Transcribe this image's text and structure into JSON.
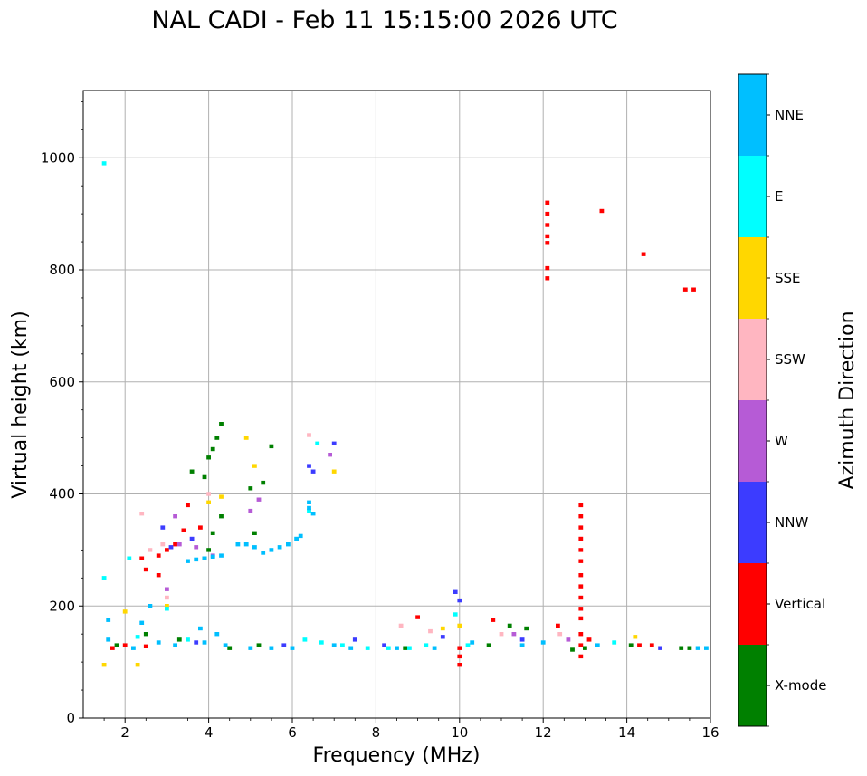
{
  "chart_data": {
    "type": "scatter",
    "title": "NAL CADI - Feb 11 15:15:00 2026 UTC",
    "xlabel": "Frequency (MHz)",
    "ylabel": "Virtual height (km)",
    "xlim": [
      1,
      16
    ],
    "ylim": [
      0,
      1120
    ],
    "xticks": [
      2,
      4,
      6,
      8,
      10,
      12,
      14,
      16
    ],
    "yticks": [
      0,
      200,
      400,
      600,
      800,
      1000
    ],
    "grid": true,
    "colorbar": {
      "label": "Azimuth Direction",
      "categories": [
        {
          "name": "X-mode",
          "color": "#008000"
        },
        {
          "name": "Vertical",
          "color": "#ff0000"
        },
        {
          "name": "NNW",
          "color": "#3c3cff"
        },
        {
          "name": "W",
          "color": "#b65bd6"
        },
        {
          "name": "SSW",
          "color": "#ffb6c1"
        },
        {
          "name": "SSE",
          "color": "#ffd700"
        },
        {
          "name": "E",
          "color": "#00ffff"
        },
        {
          "name": "NNE",
          "color": "#00bfff"
        }
      ]
    },
    "series": [
      {
        "name": "Vertical",
        "color": "#ff0000",
        "points": [
          [
            12.1,
            920
          ],
          [
            12.1,
            900
          ],
          [
            12.1,
            880
          ],
          [
            12.1,
            860
          ],
          [
            12.1,
            848
          ],
          [
            12.1,
            803
          ],
          [
            12.1,
            785
          ],
          [
            13.4,
            905
          ],
          [
            14.4,
            828
          ],
          [
            15.4,
            765
          ],
          [
            15.6,
            765
          ],
          [
            12.9,
            380
          ],
          [
            12.9,
            360
          ],
          [
            12.9,
            340
          ],
          [
            12.9,
            320
          ],
          [
            12.9,
            300
          ],
          [
            12.9,
            280
          ],
          [
            12.9,
            255
          ],
          [
            12.9,
            235
          ],
          [
            12.9,
            215
          ],
          [
            12.9,
            195
          ],
          [
            12.9,
            178
          ],
          [
            12.9,
            150
          ],
          [
            12.9,
            130
          ],
          [
            12.9,
            110
          ],
          [
            10.0,
            95
          ],
          [
            10.0,
            110
          ],
          [
            10.0,
            125
          ],
          [
            12.35,
            165
          ],
          [
            13.1,
            140
          ],
          [
            14.3,
            130
          ],
          [
            14.6,
            130
          ],
          [
            2.4,
            285
          ],
          [
            2.5,
            265
          ],
          [
            2.8,
            290
          ],
          [
            3.0,
            300
          ],
          [
            3.2,
            310
          ],
          [
            3.4,
            335
          ],
          [
            3.5,
            380
          ],
          [
            3.8,
            340
          ],
          [
            2.8,
            255
          ],
          [
            1.7,
            125
          ],
          [
            2.0,
            130
          ],
          [
            2.5,
            128
          ],
          [
            9.0,
            180
          ],
          [
            10.8,
            175
          ]
        ]
      },
      {
        "name": "X-mode",
        "color": "#008000",
        "points": [
          [
            4.3,
            525
          ],
          [
            4.1,
            480
          ],
          [
            4.2,
            500
          ],
          [
            4.0,
            465
          ],
          [
            3.9,
            430
          ],
          [
            3.6,
            440
          ],
          [
            4.1,
            330
          ],
          [
            4.0,
            300
          ],
          [
            3.9,
            285
          ],
          [
            5.1,
            330
          ],
          [
            5.5,
            485
          ],
          [
            5.3,
            420
          ],
          [
            5.0,
            410
          ],
          [
            4.3,
            360
          ],
          [
            15.3,
            125
          ],
          [
            15.5,
            125
          ],
          [
            11.2,
            165
          ],
          [
            11.6,
            160
          ],
          [
            12.7,
            122
          ],
          [
            14.1,
            130
          ],
          [
            1.8,
            130
          ],
          [
            2.5,
            150
          ],
          [
            3.3,
            140
          ],
          [
            4.5,
            125
          ],
          [
            5.2,
            130
          ],
          [
            8.7,
            125
          ],
          [
            10.7,
            130
          ],
          [
            13.0,
            125
          ]
        ]
      },
      {
        "name": "NNW",
        "color": "#3c3cff",
        "points": [
          [
            6.4,
            450
          ],
          [
            7.0,
            490
          ],
          [
            3.6,
            320
          ],
          [
            3.1,
            305
          ],
          [
            2.9,
            340
          ],
          [
            6.5,
            440
          ],
          [
            9.6,
            145
          ],
          [
            9.9,
            225
          ],
          [
            10.0,
            210
          ],
          [
            14.8,
            125
          ],
          [
            11.5,
            140
          ],
          [
            5.8,
            130
          ],
          [
            7.5,
            140
          ],
          [
            8.2,
            130
          ],
          [
            3.7,
            135
          ]
        ]
      },
      {
        "name": "W",
        "color": "#b65bd6",
        "points": [
          [
            5.0,
            370
          ],
          [
            5.2,
            390
          ],
          [
            6.9,
            470
          ],
          [
            3.3,
            310
          ],
          [
            3.7,
            305
          ],
          [
            3.2,
            360
          ],
          [
            12.6,
            140
          ],
          [
            11.3,
            150
          ],
          [
            4.1,
            290
          ],
          [
            3.0,
            230
          ]
        ]
      },
      {
        "name": "SSW",
        "color": "#ffb6c1",
        "points": [
          [
            2.4,
            365
          ],
          [
            6.4,
            505
          ],
          [
            2.6,
            300
          ],
          [
            2.9,
            310
          ],
          [
            3.0,
            215
          ],
          [
            8.6,
            165
          ],
          [
            9.3,
            155
          ],
          [
            11.0,
            150
          ],
          [
            12.4,
            150
          ],
          [
            4.0,
            400
          ]
        ]
      },
      {
        "name": "SSE",
        "color": "#ffd700",
        "points": [
          [
            4.0,
            385
          ],
          [
            4.3,
            395
          ],
          [
            4.9,
            500
          ],
          [
            7.0,
            440
          ],
          [
            5.1,
            450
          ],
          [
            1.5,
            95
          ],
          [
            2.3,
            95
          ],
          [
            2.0,
            190
          ],
          [
            3.0,
            200
          ],
          [
            10.0,
            165
          ],
          [
            14.2,
            145
          ],
          [
            9.6,
            160
          ]
        ]
      },
      {
        "name": "E",
        "color": "#00ffff",
        "points": [
          [
            1.5,
            990
          ],
          [
            1.5,
            250
          ],
          [
            6.6,
            490
          ],
          [
            2.1,
            285
          ],
          [
            3.0,
            195
          ],
          [
            6.4,
            370
          ],
          [
            6.3,
            140
          ],
          [
            6.7,
            135
          ],
          [
            7.2,
            130
          ],
          [
            7.8,
            125
          ],
          [
            8.3,
            125
          ],
          [
            8.8,
            125
          ],
          [
            9.2,
            130
          ],
          [
            10.2,
            130
          ],
          [
            13.7,
            135
          ],
          [
            3.5,
            140
          ],
          [
            2.3,
            145
          ],
          [
            9.9,
            185
          ]
        ]
      },
      {
        "name": "NNE",
        "color": "#00bfff",
        "points": [
          [
            6.4,
            385
          ],
          [
            6.4,
            375
          ],
          [
            6.5,
            365
          ],
          [
            6.2,
            325
          ],
          [
            6.1,
            320
          ],
          [
            5.9,
            310
          ],
          [
            5.7,
            305
          ],
          [
            5.5,
            300
          ],
          [
            5.3,
            295
          ],
          [
            5.1,
            305
          ],
          [
            4.9,
            310
          ],
          [
            4.7,
            310
          ],
          [
            4.3,
            290
          ],
          [
            4.1,
            288
          ],
          [
            3.9,
            285
          ],
          [
            3.7,
            283
          ],
          [
            3.5,
            280
          ],
          [
            15.7,
            125
          ],
          [
            15.9,
            125
          ],
          [
            13.3,
            130
          ],
          [
            12.0,
            135
          ],
          [
            11.5,
            130
          ],
          [
            10.3,
            135
          ],
          [
            9.4,
            125
          ],
          [
            8.5,
            125
          ],
          [
            7.4,
            125
          ],
          [
            7.0,
            130
          ],
          [
            6.0,
            125
          ],
          [
            5.5,
            125
          ],
          [
            5.0,
            125
          ],
          [
            4.4,
            130
          ],
          [
            3.9,
            135
          ],
          [
            3.2,
            130
          ],
          [
            2.8,
            135
          ],
          [
            2.2,
            125
          ],
          [
            1.6,
            140
          ],
          [
            1.6,
            175
          ],
          [
            2.4,
            170
          ],
          [
            2.6,
            200
          ],
          [
            3.8,
            160
          ],
          [
            4.2,
            150
          ]
        ]
      }
    ]
  }
}
